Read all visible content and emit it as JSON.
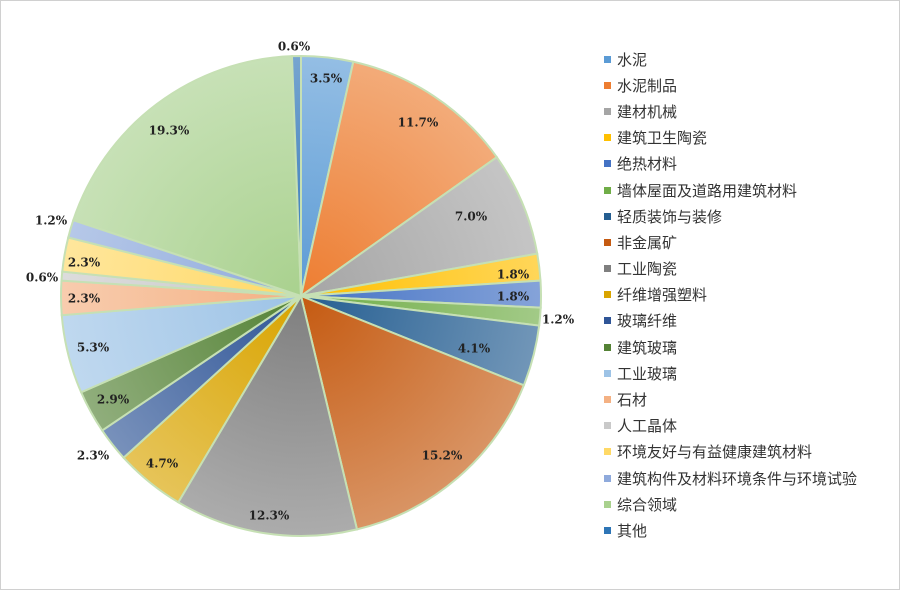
{
  "chart_data": {
    "type": "pie",
    "start_angle_deg": 0,
    "direction": "clockwise",
    "slices": [
      {
        "label": "水泥",
        "value": 3.5,
        "value_label": "3.5%",
        "color": "#5b9bd5"
      },
      {
        "label": "水泥制品",
        "value": 11.7,
        "value_label": "11.7%",
        "color": "#ed7d31"
      },
      {
        "label": "建材机械",
        "value": 7.0,
        "value_label": "7.0%",
        "color": "#a5a5a5"
      },
      {
        "label": "建筑卫生陶瓷",
        "value": 1.8,
        "value_label": "1.8%",
        "color": "#ffc000"
      },
      {
        "label": "绝热材料",
        "value": 1.8,
        "value_label": "1.8%",
        "color": "#4472c4"
      },
      {
        "label": "墙体屋面及道路用建筑材料",
        "value": 1.2,
        "value_label": "1.2%",
        "color": "#70ad47"
      },
      {
        "label": "轻质装饰与装修",
        "value": 4.1,
        "value_label": "4.1%",
        "color": "#255e91"
      },
      {
        "label": "非金属矿",
        "value": 15.2,
        "value_label": "15.2%",
        "color": "#c55a11"
      },
      {
        "label": "工业陶瓷",
        "value": 12.3,
        "value_label": "12.3%",
        "color": "#7f7f7f"
      },
      {
        "label": "纤维增强塑料",
        "value": 4.7,
        "value_label": "4.7%",
        "color": "#d9a400"
      },
      {
        "label": "玻璃纤维",
        "value": 2.3,
        "value_label": "2.3%",
        "color": "#2f5597"
      },
      {
        "label": "建筑玻璃",
        "value": 2.9,
        "value_label": "2.9%",
        "color": "#548235"
      },
      {
        "label": "工业玻璃",
        "value": 5.3,
        "value_label": "5.3%",
        "color": "#9dc3e6"
      },
      {
        "label": "石材",
        "value": 2.3,
        "value_label": "2.3%",
        "color": "#f4b183"
      },
      {
        "label": "人工晶体",
        "value": 0.6,
        "value_label": "0.6%",
        "color": "#c9c9c9"
      },
      {
        "label": "环境友好与有益健康建筑材料",
        "value": 2.3,
        "value_label": "2.3%",
        "color": "#ffd966"
      },
      {
        "label": "建筑构件及材料环境条件与环境试验",
        "value": 1.2,
        "value_label": "1.2%",
        "color": "#8faadc"
      },
      {
        "label": "综合领域",
        "value": 19.3,
        "value_label": "19.3%",
        "color": "#a9d18e"
      },
      {
        "label": "其他",
        "value": 0.6,
        "value_label": "0.6%",
        "color": "#2e75b6"
      }
    ],
    "legend_position": "right",
    "slice_border_color": "#c6e0b4"
  }
}
